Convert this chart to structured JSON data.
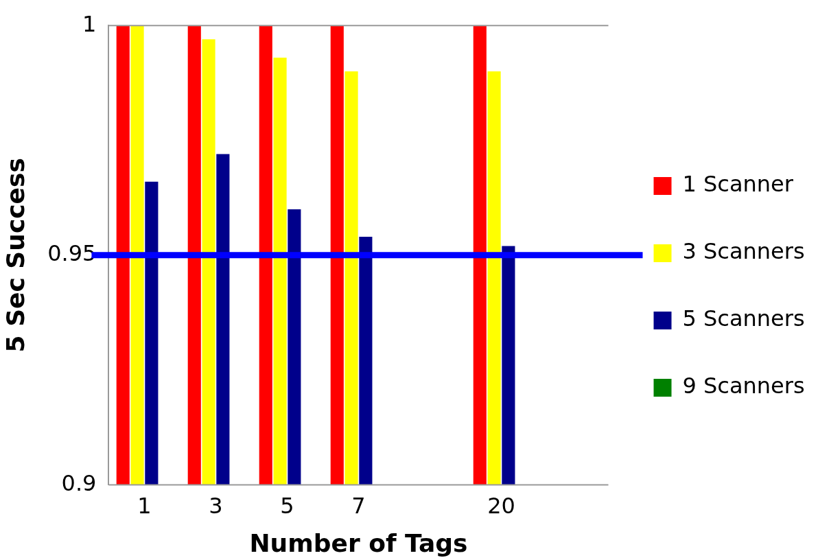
{
  "chart_data": {
    "type": "bar",
    "xlabel": "Number of Tags",
    "ylabel": "5 Sec Success",
    "categories": [
      "1",
      "3",
      "5",
      "7",
      null,
      "20",
      null
    ],
    "series": [
      {
        "name": "1 Scanner",
        "color": "#ff0000",
        "values": [
          1,
          1,
          1,
          1,
          null,
          1,
          null
        ]
      },
      {
        "name": "3 Scanners",
        "color": "#ffff00",
        "values": [
          1,
          0.997,
          0.993,
          0.99,
          null,
          0.99,
          null
        ]
      },
      {
        "name": "5 Scanners",
        "color": "#00008b",
        "values": [
          0.966,
          0.972,
          0.96,
          0.954,
          null,
          0.952,
          null
        ]
      },
      {
        "name": "9 Scanners",
        "color": "#008000",
        "values": [
          null,
          null,
          null,
          null,
          null,
          null,
          null
        ]
      }
    ],
    "ylim": [
      0.9,
      1
    ],
    "yticks": [
      0.9,
      0.95,
      1
    ],
    "grid": false,
    "legend": "right",
    "ref_lines": [
      {
        "axis": "y",
        "value": 0.95,
        "color": "#0000ff"
      }
    ]
  }
}
